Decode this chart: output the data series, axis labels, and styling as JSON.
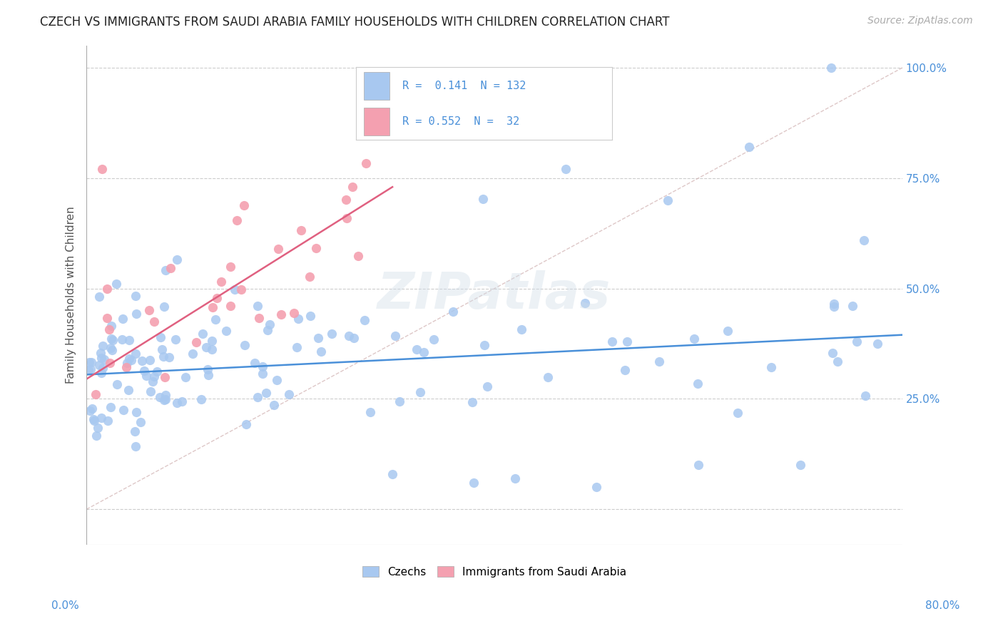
{
  "title": "CZECH VS IMMIGRANTS FROM SAUDI ARABIA FAMILY HOUSEHOLDS WITH CHILDREN CORRELATION CHART",
  "source": "Source: ZipAtlas.com",
  "ylabel": "Family Households with Children",
  "xlim": [
    0.0,
    0.8
  ],
  "ylim": [
    -0.08,
    1.05
  ],
  "ytick_values": [
    0.0,
    0.25,
    0.5,
    0.75,
    1.0
  ],
  "ytick_labels": [
    "",
    "25.0%",
    "50.0%",
    "75.0%",
    "100.0%"
  ],
  "czech_color": "#a8c8f0",
  "saudi_color": "#f4a0b0",
  "czech_line_color": "#4a90d9",
  "saudi_line_color": "#e06080",
  "diagonal_color": "#d0b0b0",
  "background_color": "#ffffff",
  "czech_seed": 42,
  "saudi_seed": 7,
  "n_czech": 132,
  "n_saudi": 32
}
